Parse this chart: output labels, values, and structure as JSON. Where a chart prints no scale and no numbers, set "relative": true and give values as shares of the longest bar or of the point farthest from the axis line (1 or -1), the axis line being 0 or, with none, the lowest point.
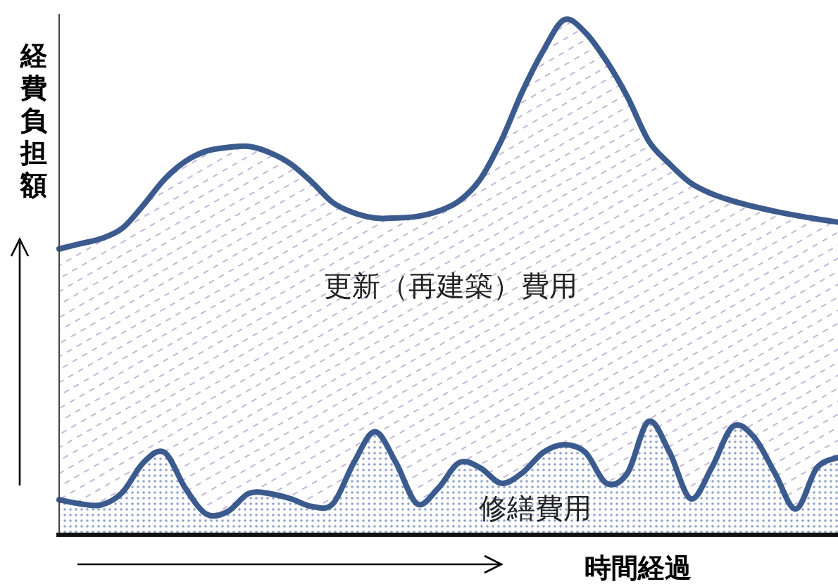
{
  "chart_data": {
    "type": "area",
    "relative": true,
    "xlabel": "時間経過",
    "ylabel": "経費負担額",
    "categories": [
      null,
      null,
      null,
      null,
      null,
      null,
      null,
      null,
      null,
      null,
      null,
      null,
      null,
      null,
      null,
      null,
      null,
      null,
      null,
      null,
      null,
      null,
      null,
      null,
      null,
      null,
      null,
      null,
      null,
      null,
      null,
      null,
      null,
      null,
      null,
      null,
      null,
      null
    ],
    "series": [
      {
        "name": "更新（再建築）費用",
        "color": "#3b5b8e",
        "values": [
          0.555,
          0.565,
          0.575,
          0.595,
          0.64,
          0.69,
          0.725,
          0.745,
          0.752,
          0.754,
          0.742,
          0.72,
          0.685,
          0.645,
          0.625,
          0.615,
          0.615,
          0.618,
          0.628,
          0.648,
          0.69,
          0.765,
          0.86,
          0.94,
          1,
          0.975,
          0.92,
          0.85,
          0.765,
          0.72,
          0.683,
          0.662,
          0.648,
          0.637,
          0.628,
          0.62,
          0.613,
          0.607
        ]
      },
      {
        "name": "修繕費用",
        "color": "#3b5b8e",
        "values": [
          0.068,
          0.06,
          0.058,
          0.082,
          0.14,
          0.16,
          0.09,
          0.04,
          0.045,
          0.08,
          0.08,
          0.07,
          0.055,
          0.06,
          0.14,
          0.2,
          0.14,
          0.06,
          0.09,
          0.14,
          0.13,
          0.1,
          0.12,
          0.16,
          0.175,
          0.16,
          0.1,
          0.12,
          0.22,
          0.16,
          0.07,
          0.13,
          0.21,
          0.19,
          0.12,
          0.05,
          0.13,
          0.15
        ]
      }
    ]
  }
}
